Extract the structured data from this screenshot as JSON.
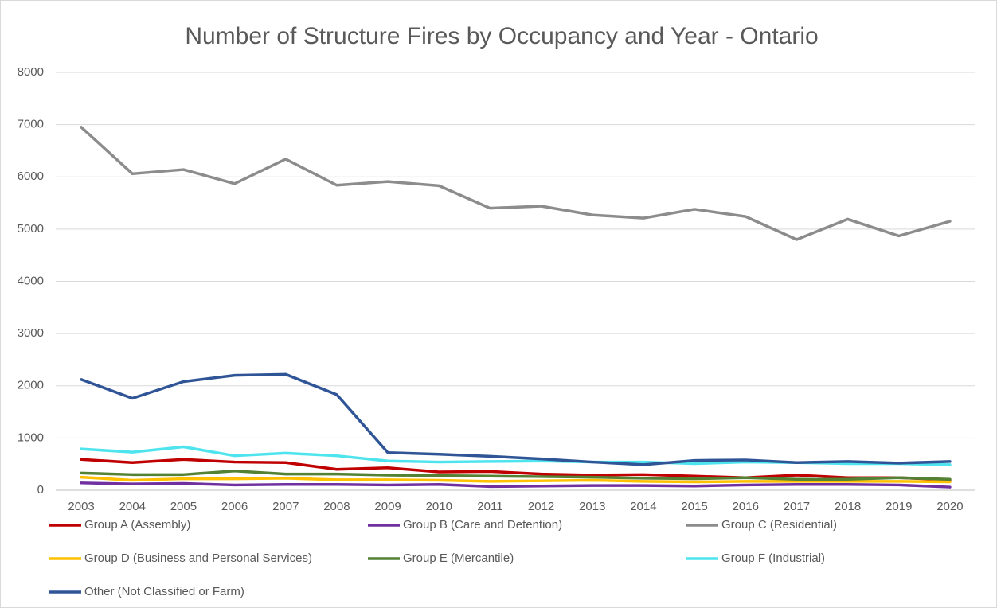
{
  "chart_data": {
    "type": "line",
    "title": "Number of Structure Fires by Occupancy and Year - Ontario",
    "categories": [
      2003,
      2004,
      2005,
      2006,
      2007,
      2008,
      2009,
      2010,
      2011,
      2012,
      2013,
      2014,
      2015,
      2016,
      2017,
      2018,
      2019,
      2020
    ],
    "series": [
      {
        "name": "Group A (Assembly)",
        "color": "#c00000",
        "values": [
          590,
          530,
          590,
          540,
          530,
          400,
          430,
          350,
          360,
          310,
          290,
          300,
          270,
          240,
          290,
          240,
          240,
          200
        ]
      },
      {
        "name": "Group B (Care and Detention)",
        "color": "#7030a0",
        "values": [
          140,
          120,
          130,
          100,
          110,
          110,
          100,
          110,
          70,
          80,
          90,
          90,
          80,
          100,
          110,
          110,
          100,
          60
        ]
      },
      {
        "name": "Group C (Residential)",
        "color": "#8c8c8c",
        "values": [
          6950,
          6060,
          6140,
          5870,
          6340,
          5840,
          5910,
          5830,
          5400,
          5440,
          5270,
          5210,
          5380,
          5240,
          4800,
          5190,
          4870,
          5150
        ]
      },
      {
        "name": "Group D (Business and Personal Services)",
        "color": "#ffc000",
        "values": [
          250,
          190,
          220,
          220,
          230,
          200,
          200,
          190,
          170,
          180,
          190,
          170,
          160,
          170,
          170,
          170,
          170,
          160
        ]
      },
      {
        "name": "Group E (Mercantile)",
        "color": "#548235",
        "values": [
          330,
          300,
          300,
          370,
          310,
          310,
          290,
          280,
          270,
          260,
          250,
          230,
          220,
          240,
          210,
          210,
          240,
          210
        ]
      },
      {
        "name": "Group F (Industrial)",
        "color": "#4ee4ee",
        "values": [
          790,
          730,
          830,
          660,
          710,
          660,
          560,
          540,
          550,
          560,
          540,
          540,
          510,
          540,
          530,
          510,
          510,
          490
        ]
      },
      {
        "name": "Other (Not Classified or Farm)",
        "color": "#2f5597",
        "values": [
          2120,
          1760,
          2080,
          2200,
          2220,
          1830,
          720,
          690,
          650,
          600,
          540,
          490,
          570,
          580,
          530,
          550,
          520,
          550
        ]
      }
    ],
    "ylim": [
      0,
      8000
    ],
    "yticks": [
      0,
      1000,
      2000,
      3000,
      4000,
      5000,
      6000,
      7000,
      8000
    ],
    "grid": true,
    "legend": "bottom"
  }
}
